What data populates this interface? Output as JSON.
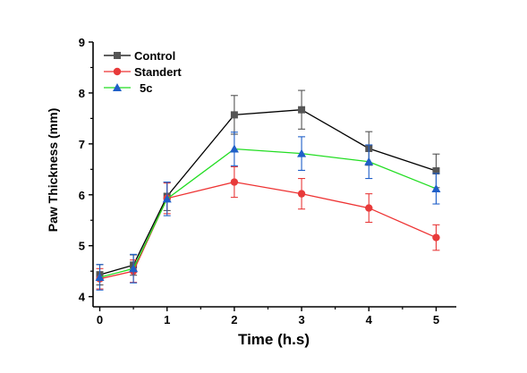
{
  "chart_data": {
    "type": "line",
    "title": "",
    "xlabel": "Time (h.s)",
    "ylabel": "Paw Thickness (mm)",
    "xlim": [
      -0.1,
      5.3
    ],
    "ylim": [
      3.8,
      9
    ],
    "xticks": [
      0,
      1,
      2,
      3,
      4,
      5
    ],
    "yticks": [
      4,
      5,
      6,
      7,
      8,
      9
    ],
    "grid": false,
    "legend_position": "top-left",
    "x": [
      0,
      0.5,
      1,
      2,
      3,
      4,
      5
    ],
    "series": [
      {
        "name": "Control",
        "color": "#000000",
        "marker_color": "#555555",
        "marker": "square",
        "values": [
          4.43,
          4.62,
          5.97,
          7.57,
          7.67,
          6.91,
          6.47
        ],
        "errors": [
          0.2,
          0.2,
          0.28,
          0.38,
          0.38,
          0.33,
          0.33
        ]
      },
      {
        "name": "Standert",
        "color": "#ee3333",
        "marker_color": "#e83a3a",
        "marker": "circle",
        "values": [
          4.35,
          4.5,
          5.93,
          6.25,
          6.02,
          5.74,
          5.16
        ],
        "errors": [
          0.2,
          0.22,
          0.3,
          0.3,
          0.3,
          0.28,
          0.25
        ]
      },
      {
        "name": "5c",
        "color": "#22dd22",
        "marker_color": "#1f5fc8",
        "marker": "triangle",
        "values": [
          4.38,
          4.55,
          5.92,
          6.9,
          6.81,
          6.65,
          6.12
        ],
        "errors": [
          0.25,
          0.28,
          0.33,
          0.33,
          0.33,
          0.33,
          0.3
        ]
      }
    ]
  }
}
